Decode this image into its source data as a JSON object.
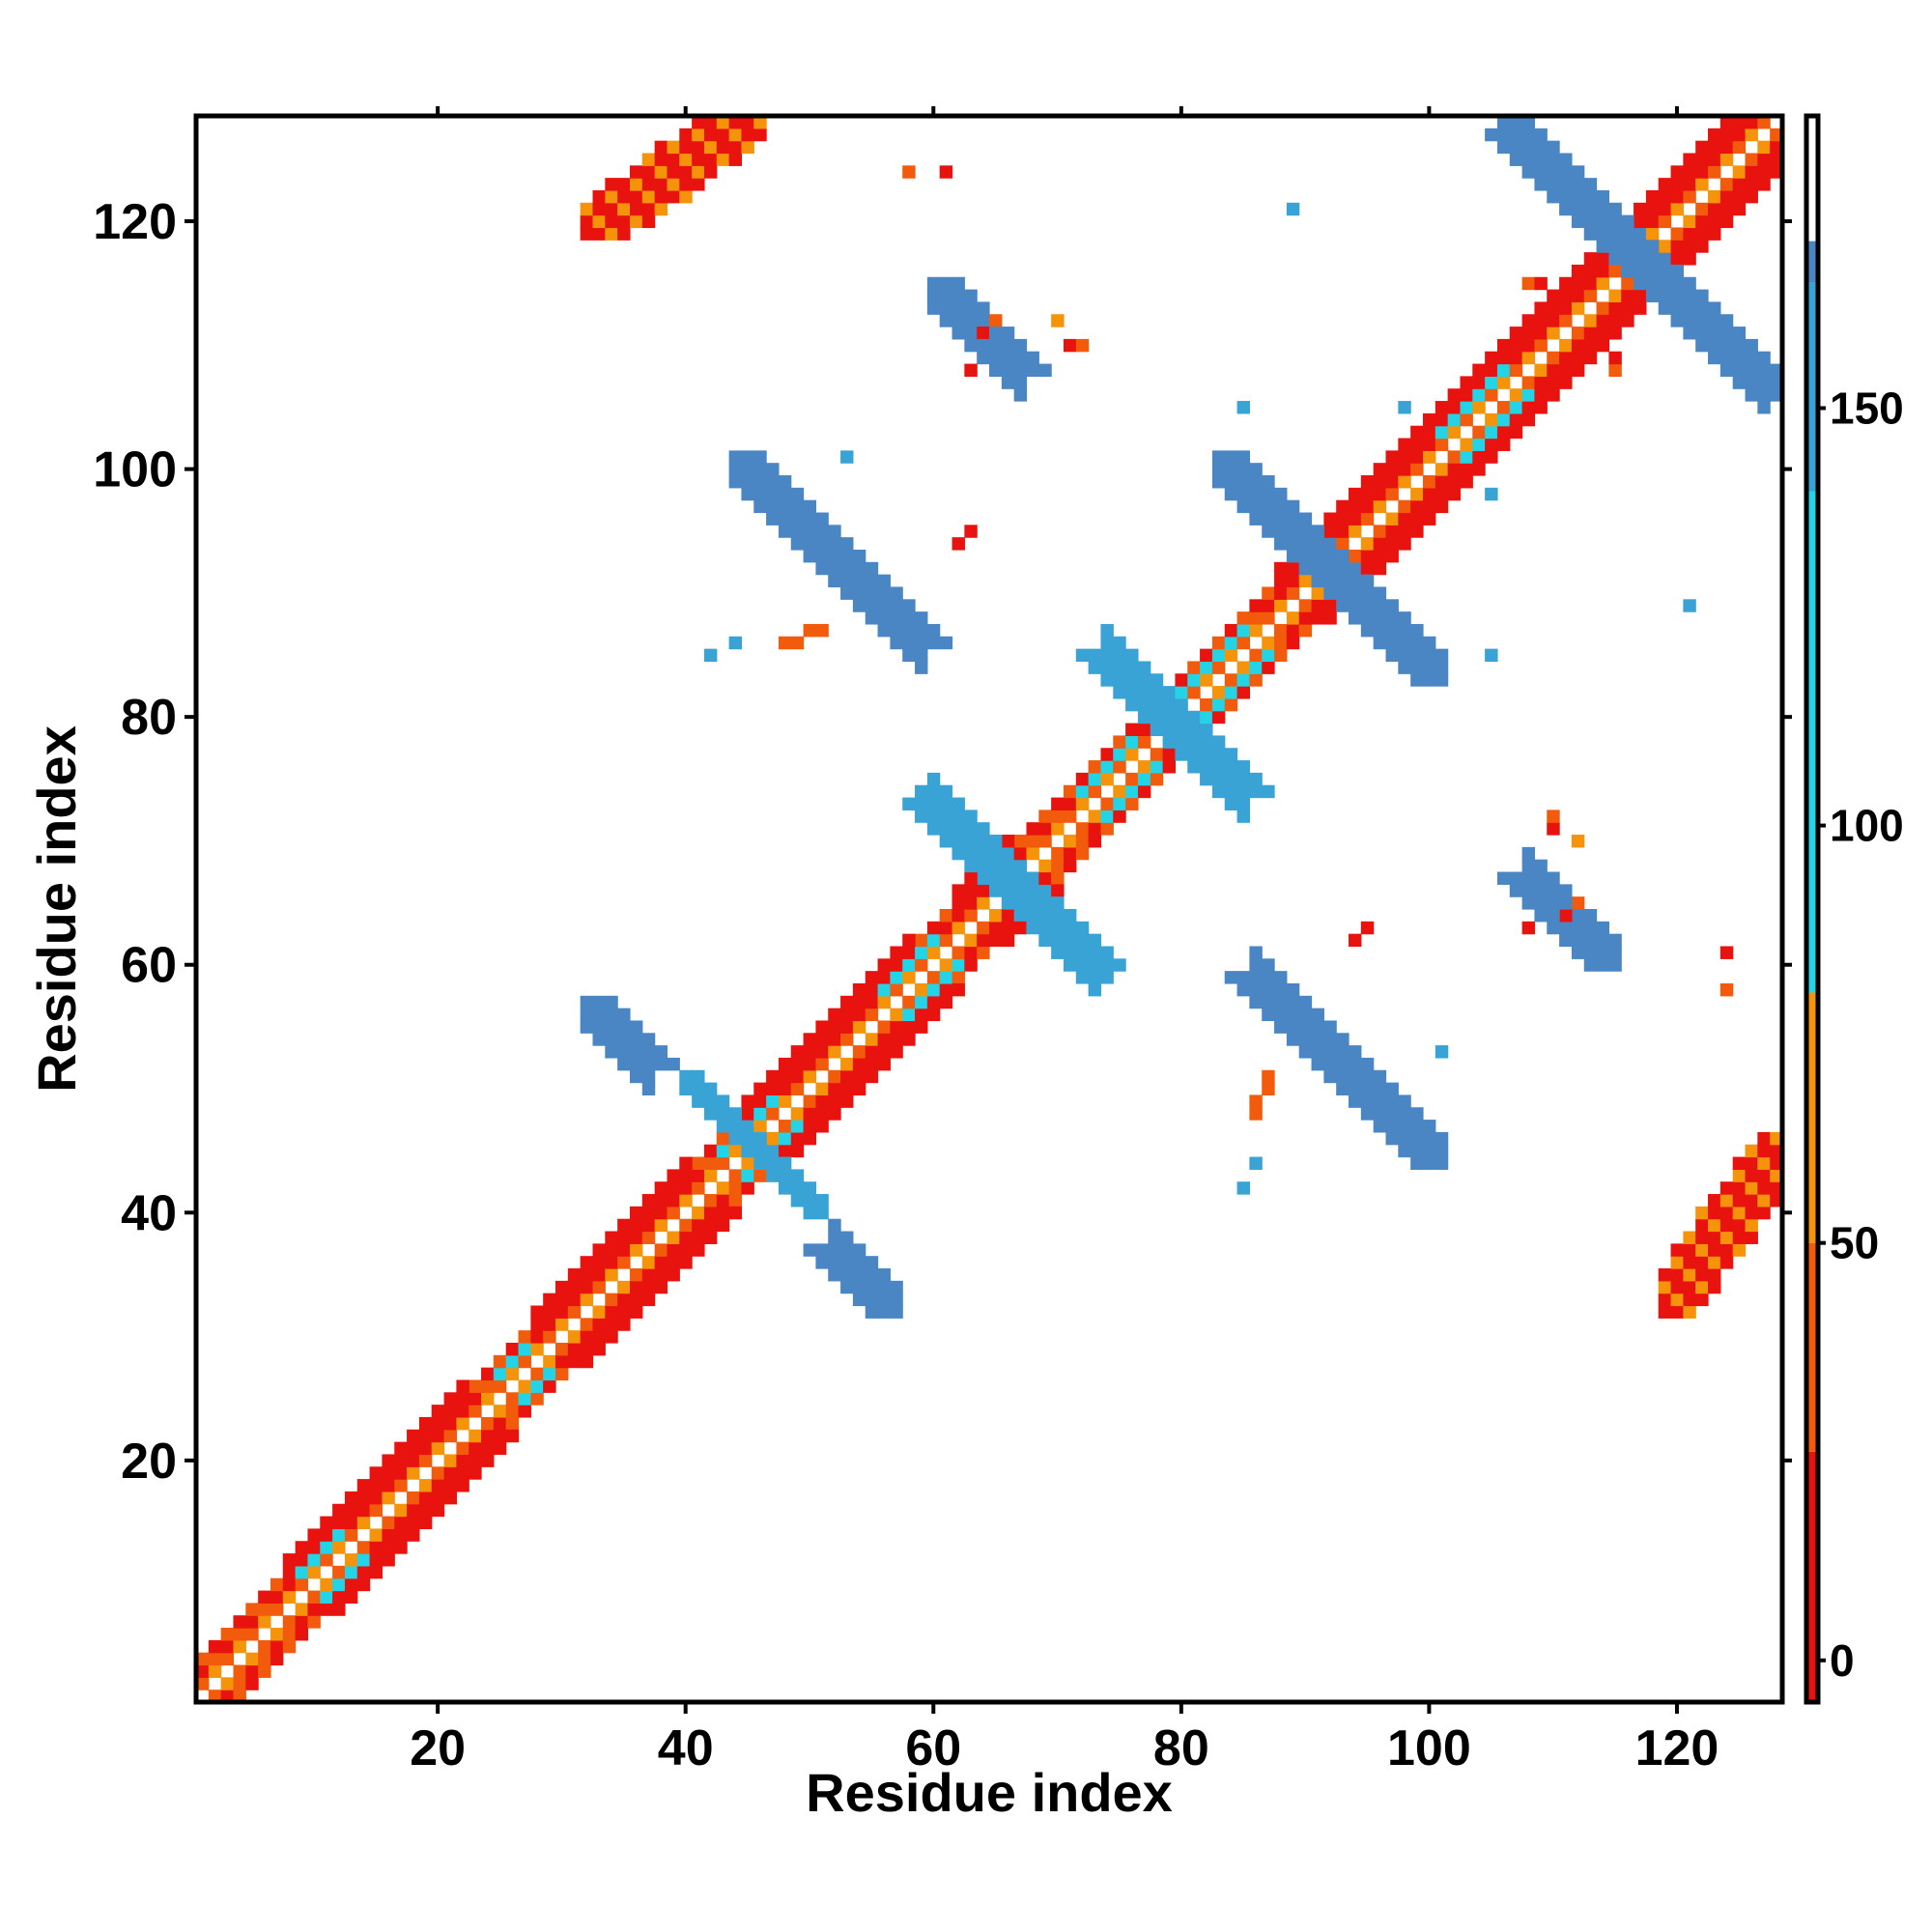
{
  "chart_data": {
    "type": "heatmap",
    "title": "",
    "xlabel": "Residue index",
    "ylabel": "Residue index",
    "xlim": [
      1,
      128
    ],
    "ylim": [
      1,
      128
    ],
    "x_ticks": [
      20,
      40,
      60,
      80,
      100,
      120
    ],
    "y_ticks": [
      20,
      40,
      60,
      80,
      100,
      120
    ],
    "grid": false,
    "colorbar": {
      "range": [
        -5,
        185
      ],
      "ticks": [
        0,
        50,
        100,
        150
      ],
      "stops": [
        {
          "from": -5,
          "to": 25,
          "color": "#e8120e"
        },
        {
          "from": 25,
          "to": 50,
          "color": "#f25a0c"
        },
        {
          "from": 50,
          "to": 80,
          "color": "#f5940a"
        },
        {
          "from": 80,
          "to": 140,
          "color": "#22d4e6"
        },
        {
          "from": 140,
          "to": 165,
          "color": "#3aa3d6"
        },
        {
          "from": 165,
          "to": 185,
          "color": "#4a86c4"
        }
      ]
    },
    "cell_colors": {
      "red": "#e8120e",
      "orange_red": "#f25a0c",
      "orange": "#f5940a",
      "cyan": "#22d4e6",
      "light_blue": "#3aa3d6",
      "steel_blue": "#4a86c4"
    },
    "regions": [
      {
        "desc": "diagonal beta/alpha backbone",
        "from": [
          1,
          1
        ],
        "to": [
          128,
          128
        ],
        "band": "diagonal"
      },
      {
        "desc": "helix 45-58",
        "range": [
          45,
          58
        ],
        "band": "alpha",
        "value": 10
      },
      {
        "desc": "helix 88-112",
        "range": [
          88,
          112
        ],
        "band": "alpha",
        "value": 10
      },
      {
        "desc": "helix 112-128",
        "range": [
          112,
          128
        ],
        "band": "alpha",
        "value": 10
      },
      {
        "desc": "antiparallel 117/117 X",
        "center": [
          117,
          117
        ],
        "length": 14,
        "anti": true,
        "value": 165
      },
      {
        "desc": "antiparallel 92/92 X",
        "center": [
          92,
          92
        ],
        "length": 10,
        "anti": true,
        "value": 165
      },
      {
        "desc": "antiparallel 67/67 X",
        "center": [
          67,
          67
        ],
        "length": 5,
        "anti": true,
        "value": 150
      },
      {
        "desc": "antiparallel 45/45 X",
        "center": [
          44,
          44
        ],
        "length": 3,
        "anti": true,
        "value": 150
      },
      {
        "desc": "strand pair 33-38 / 52-57",
        "a": [
          33,
          57
        ],
        "b": [
          38,
          52
        ],
        "anti": true,
        "value": 165
      },
      {
        "desc": "strand pair 51-56 / 32-37",
        "a": [
          51,
          37
        ],
        "b": [
          56,
          32
        ],
        "anti": true,
        "value": 165
      },
      {
        "desc": "strand pair 44-58 / 92-102",
        "a": [
          44,
          102
        ],
        "b": [
          58,
          91
        ],
        "anti": true,
        "value": 170
      },
      {
        "desc": "strand pair 91-102 / 44-58 (mirror)",
        "a": [
          91,
          58
        ],
        "b": [
          102,
          43
        ],
        "anti": true,
        "value": 170
      },
      {
        "desc": "strand pair 58-67 / 107-114",
        "a": [
          58,
          115
        ],
        "b": [
          67,
          106
        ],
        "anti": true,
        "value": 168
      },
      {
        "desc": "strand pair 107-114 / 58-67 (mirror)",
        "a": [
          107,
          67
        ],
        "b": [
          115,
          57
        ],
        "anti": true,
        "value": 168
      },
      {
        "desc": "strand pair 63-73 / 63-73 X",
        "a": [
          63,
          73
        ],
        "b": [
          73,
          63
        ],
        "anti": true,
        "value": 160
      },
      {
        "desc": "strand pair 76-84 / 76-84 X",
        "a": [
          76,
          84
        ],
        "b": [
          84,
          76
        ],
        "anti": true,
        "value": 160
      },
      {
        "desc": "corner contact 42/125",
        "a": [
          40,
          127
        ],
        "b": [
          45,
          123
        ],
        "value": 5
      },
      {
        "desc": "corner contact 125/42",
        "a": [
          123,
          41
        ],
        "b": [
          127,
          40
        ],
        "value": 5
      },
      {
        "desc": "corner contact 33/122",
        "a": [
          32,
          120
        ],
        "b": [
          42,
          126
        ],
        "value": 10
      },
      {
        "desc": "corner contact 122/33",
        "a": [
          119,
          32
        ],
        "b": [
          126,
          38
        ],
        "value": 10
      }
    ]
  }
}
